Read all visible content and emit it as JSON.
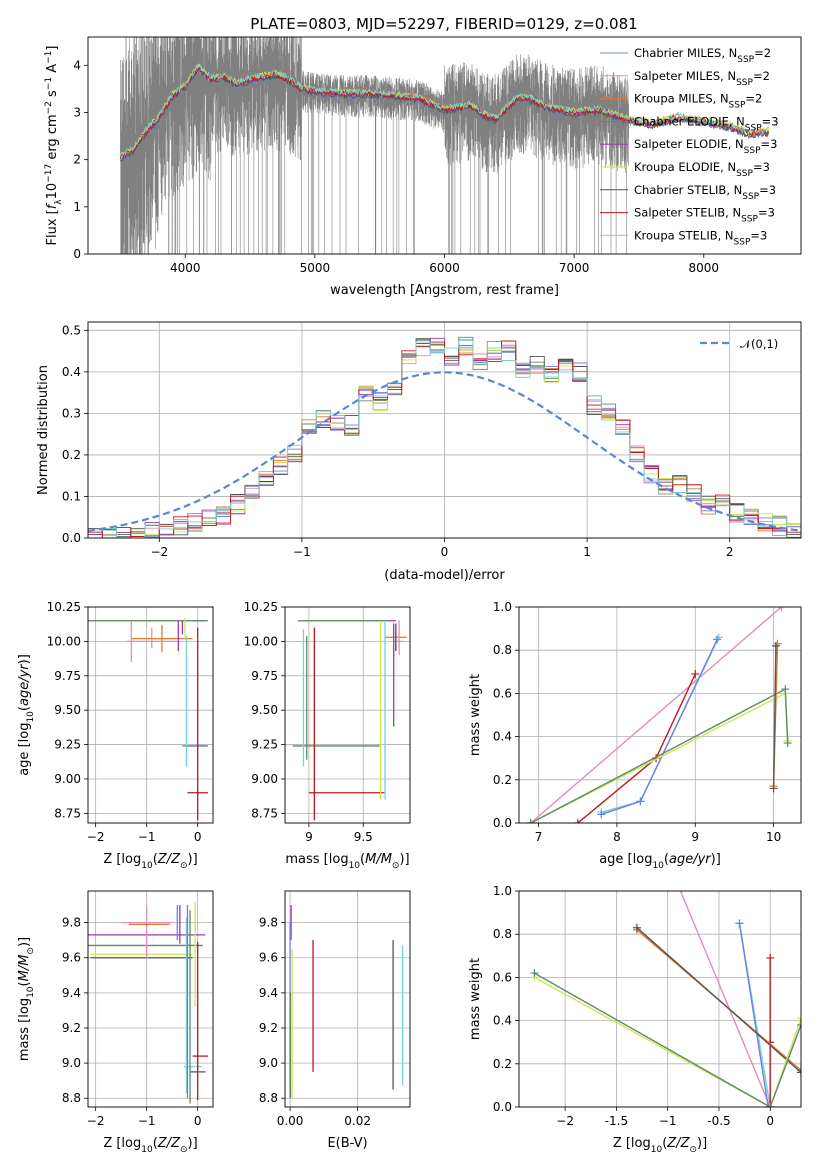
{
  "figure": {
    "title": "PLATE=0803, MJD=52297, FIBERID=0129, z=0.081"
  },
  "series": [
    {
      "key": "chab_miles",
      "name": "Chabrier MILES, N_SSP=2",
      "color": "#6f7fe8"
    },
    {
      "key": "salp_miles",
      "name": "Salpeter MILES, N_SSP=2",
      "color": "#e58ac5"
    },
    {
      "key": "krou_miles",
      "name": "Kroupa MILES, N_SSP=2",
      "color": "#e0782a"
    },
    {
      "key": "chab_elodie",
      "name": "Chabrier ELODIE, N_SSP=3",
      "color": "#5f8a6a"
    },
    {
      "key": "salp_elodie",
      "name": "Salpeter ELODIE, N_SSP=3",
      "color": "#9b38b0"
    },
    {
      "key": "krou_elodie",
      "name": "Kroupa ELODIE, N_SSP=3",
      "color": "#cde84a"
    },
    {
      "key": "chab_stelib",
      "name": "Chabrier STELIB, N_SSP=3",
      "color": "#555555"
    },
    {
      "key": "salp_stelib",
      "name": "Salpeter STELIB, N_SSP=3",
      "color": "#c01818"
    },
    {
      "key": "krou_stelib",
      "name": "Kroupa STELIB, N_SSP=3",
      "color": "#74d4d4"
    }
  ],
  "chart_data": [
    {
      "id": "spectrum",
      "type": "line",
      "xlabel": "wavelength [Angstrom, rest frame]",
      "ylabel": "Flux [f_λ10^-17 erg cm^-2 s^-1 A^-1]",
      "xlim": [
        3250,
        8750
      ],
      "ylim": [
        0,
        4.6
      ],
      "xticks": [
        4000,
        5000,
        6000,
        7000,
        8000
      ],
      "yticks": [
        0,
        1,
        2,
        3,
        4
      ],
      "grid": false,
      "legend": "top-right",
      "data_color": "#808080",
      "data_x_range": [
        3500,
        7420
      ],
      "model_points": [
        [
          3500,
          2.05
        ],
        [
          3600,
          2.2
        ],
        [
          3700,
          2.6
        ],
        [
          3800,
          2.9
        ],
        [
          3900,
          3.35
        ],
        [
          4000,
          3.55
        ],
        [
          4100,
          3.95
        ],
        [
          4200,
          3.7
        ],
        [
          4300,
          3.75
        ],
        [
          4400,
          3.6
        ],
        [
          4500,
          3.7
        ],
        [
          4600,
          3.75
        ],
        [
          4700,
          3.8
        ],
        [
          4800,
          3.7
        ],
        [
          4900,
          3.5
        ],
        [
          5000,
          3.45
        ],
        [
          5200,
          3.4
        ],
        [
          5400,
          3.4
        ],
        [
          5600,
          3.35
        ],
        [
          5800,
          3.3
        ],
        [
          6000,
          3.05
        ],
        [
          6100,
          3.1
        ],
        [
          6200,
          3.15
        ],
        [
          6300,
          2.95
        ],
        [
          6400,
          2.85
        ],
        [
          6500,
          3.15
        ],
        [
          6560,
          3.3
        ],
        [
          6650,
          3.3
        ],
        [
          6800,
          3.1
        ],
        [
          7000,
          3.0
        ],
        [
          7200,
          3.05
        ],
        [
          7400,
          2.85
        ],
        [
          7600,
          2.75
        ],
        [
          7800,
          2.9
        ],
        [
          8000,
          2.8
        ],
        [
          8200,
          2.7
        ],
        [
          8350,
          2.55
        ],
        [
          8500,
          2.6
        ]
      ]
    },
    {
      "id": "residuals",
      "type": "histogram",
      "xlabel": "(data-model)/error",
      "ylabel": "Normed distribution",
      "xlim": [
        -2.5,
        2.5
      ],
      "ylim": [
        0,
        0.52
      ],
      "xticks": [
        -2,
        -1,
        0,
        1,
        2
      ],
      "yticks": [
        0.0,
        0.1,
        0.2,
        0.3,
        0.4,
        0.5
      ],
      "grid": true,
      "legend": "top-right",
      "reference_curve": {
        "label": "𝒩(0,1)",
        "mean": 0,
        "sigma": 1,
        "color": "#5b86d6"
      },
      "bin_width": 0.1,
      "bin_start": -2.5,
      "values": [
        0.0,
        0.0,
        0.01,
        0.01,
        0.02,
        0.03,
        0.03,
        0.04,
        0.05,
        0.05,
        0.08,
        0.12,
        0.14,
        0.17,
        0.2,
        0.26,
        0.29,
        0.28,
        0.27,
        0.35,
        0.33,
        0.37,
        0.44,
        0.46,
        0.47,
        0.44,
        0.46,
        0.43,
        0.45,
        0.45,
        0.41,
        0.42,
        0.39,
        0.42,
        0.4,
        0.32,
        0.3,
        0.26,
        0.2,
        0.15,
        0.12,
        0.13,
        0.11,
        0.08,
        0.08,
        0.06,
        0.05,
        0.04,
        0.03,
        0.02
      ]
    },
    {
      "id": "age_vs_Z",
      "type": "errorbar",
      "xlabel": "Z [log10(Z/Z⊙)]",
      "ylabel": "age  [log10(age/yr)]",
      "xlim": [
        -2.15,
        0.3
      ],
      "ylim": [
        8.68,
        10.25
      ],
      "xticks": [
        -2,
        -1,
        0
      ],
      "yticks": [
        8.75,
        9.0,
        9.25,
        9.5,
        9.75,
        10.0,
        10.25
      ],
      "grid": true
    },
    {
      "id": "age_vs_mass",
      "type": "errorbar",
      "xlabel": "mass [log10(M/M⊙)]",
      "ylabel": "",
      "xlim": [
        8.78,
        9.93
      ],
      "ylim": [
        8.68,
        10.25
      ],
      "xticks": [
        9.0,
        9.5
      ],
      "yticks": [
        8.75,
        9.0,
        9.25,
        9.5,
        9.75,
        10.0,
        10.25
      ],
      "grid": true
    },
    {
      "id": "massweight_vs_age",
      "type": "line",
      "xlabel": "age  [log10(age/yr)]",
      "ylabel": "mass weight",
      "xlim": [
        6.75,
        10.35
      ],
      "ylim": [
        0,
        1
      ],
      "xticks": [
        7,
        8,
        9,
        10
      ],
      "yticks": [
        0.0,
        0.2,
        0.4,
        0.6,
        0.8,
        1.0
      ],
      "grid": true
    },
    {
      "id": "mass_vs_Z",
      "type": "errorbar",
      "xlabel": "Z [log10(Z/Z⊙)]",
      "ylabel": "mass [log10(M/M⊙)]",
      "xlim": [
        -2.15,
        0.3
      ],
      "ylim": [
        8.75,
        9.98
      ],
      "xticks": [
        -2,
        -1,
        0
      ],
      "yticks": [
        8.8,
        9.0,
        9.2,
        9.4,
        9.6,
        9.8
      ],
      "grid": true
    },
    {
      "id": "mass_vs_ebv",
      "type": "errorbar",
      "xlabel": "E(B-V)",
      "ylabel": "",
      "xlim": [
        -0.0015,
        0.0355
      ],
      "ylim": [
        8.75,
        9.98
      ],
      "xticks": [
        0.0,
        0.02
      ],
      "yticks": [
        8.8,
        9.0,
        9.2,
        9.4,
        9.6,
        9.8
      ],
      "grid": true
    },
    {
      "id": "massweight_vs_Z",
      "type": "line",
      "xlabel": "Z [log10(Z/Z⊙)]",
      "ylabel": "mass weight",
      "xlim": [
        -2.45,
        0.3
      ],
      "ylim": [
        0,
        1
      ],
      "xticks": [
        -2.0,
        -1.5,
        -1.0,
        -0.5,
        0.0
      ],
      "yticks": [
        0.0,
        0.2,
        0.4,
        0.6,
        0.8,
        1.0
      ],
      "grid": true
    }
  ]
}
